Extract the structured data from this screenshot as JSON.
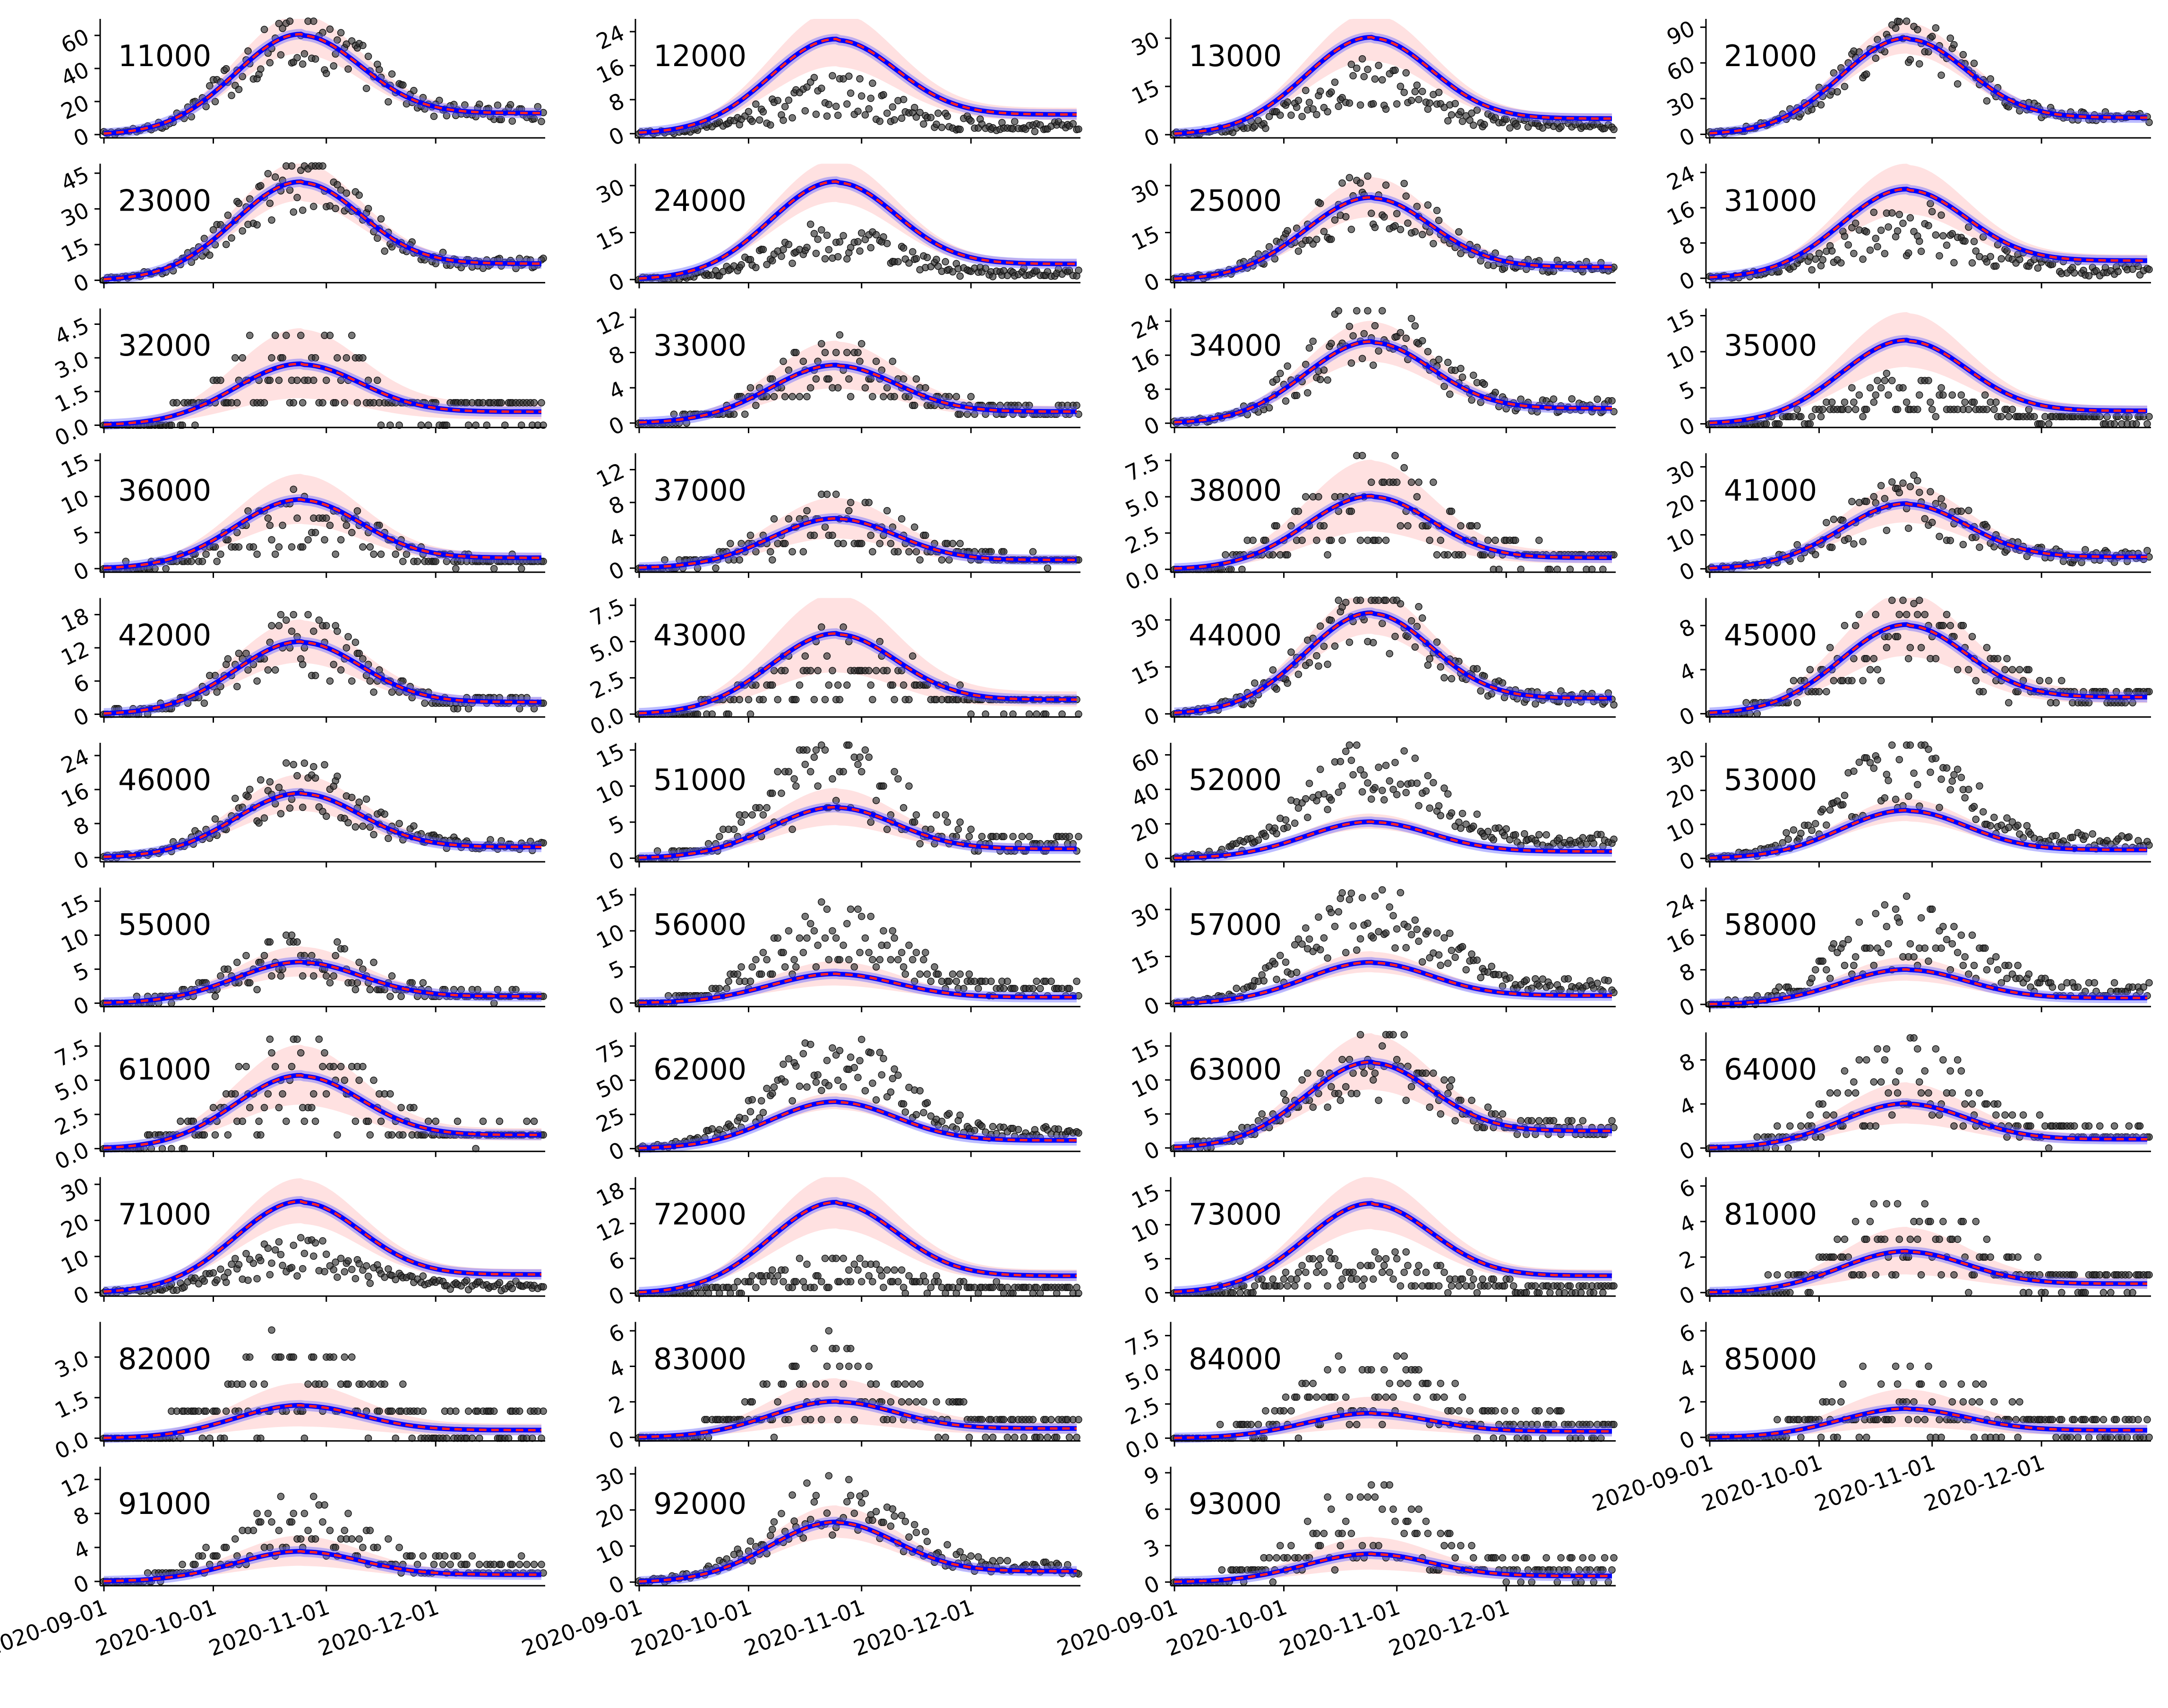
{
  "figure": {
    "x_ticks": [
      "2020-09-01",
      "2020-10-01",
      "2020-11-01",
      "2020-12-01"
    ],
    "colors": {
      "observed_points": "#333333",
      "fit_line": "#0000ff",
      "fit_line_halo": "#6a6aff",
      "median_dashed": "#ff2222",
      "uncertainty_band": "#ff9a9a"
    }
  },
  "chart_data": [
    {
      "type": "scatter",
      "panel_label": "11000",
      "y_ticks": [
        "0",
        "20",
        "40",
        "60"
      ],
      "ylim": [
        -2,
        70
      ],
      "peak": 60,
      "tail": 13,
      "band": 0.12,
      "obs_scale": 1.0,
      "obs_noise": 0.35,
      "x_ticks_visible": false
    },
    {
      "type": "scatter",
      "panel_label": "12000",
      "y_ticks": [
        "0",
        "8",
        "16",
        "24"
      ],
      "ylim": [
        -1,
        27
      ],
      "peak": 22,
      "tail": 4.5,
      "band": 0.18,
      "obs_scale": 0.4,
      "obs_noise": 0.6,
      "x_ticks_visible": false
    },
    {
      "type": "scatter",
      "panel_label": "13000",
      "y_ticks": [
        "0",
        "15",
        "30"
      ],
      "ylim": [
        -1,
        36
      ],
      "peak": 30,
      "tail": 5,
      "band": 0.15,
      "obs_scale": 0.55,
      "obs_noise": 0.5,
      "x_ticks_visible": false
    },
    {
      "type": "scatter",
      "panel_label": "21000",
      "y_ticks": [
        "0",
        "30",
        "60",
        "90"
      ],
      "ylim": [
        -3,
        97
      ],
      "peak": 80,
      "tail": 14,
      "band": 0.1,
      "obs_scale": 1.0,
      "obs_noise": 0.3,
      "x_ticks_visible": false
    },
    {
      "type": "scatter",
      "panel_label": "23000",
      "y_ticks": [
        "0",
        "15",
        "30",
        "45"
      ],
      "ylim": [
        -1,
        49
      ],
      "peak": 41,
      "tail": 7,
      "band": 0.12,
      "obs_scale": 1.0,
      "obs_noise": 0.35,
      "x_ticks_visible": false
    },
    {
      "type": "scatter",
      "panel_label": "24000",
      "y_ticks": [
        "0",
        "15",
        "30"
      ],
      "ylim": [
        -1,
        37
      ],
      "peak": 31,
      "tail": 5,
      "band": 0.13,
      "obs_scale": 0.4,
      "obs_noise": 0.5,
      "x_ticks_visible": false
    },
    {
      "type": "scatter",
      "panel_label": "25000",
      "y_ticks": [
        "0",
        "15",
        "30"
      ],
      "ylim": [
        -1,
        37
      ],
      "peak": 26,
      "tail": 4,
      "band": 0.15,
      "obs_scale": 1.0,
      "obs_noise": 0.4,
      "x_ticks_visible": false
    },
    {
      "type": "scatter",
      "panel_label": "31000",
      "y_ticks": [
        "0",
        "8",
        "16",
        "24"
      ],
      "ylim": [
        -1,
        26
      ],
      "peak": 20,
      "tail": 4,
      "band": 0.17,
      "obs_scale": 0.55,
      "obs_noise": 0.6,
      "x_ticks_visible": false
    },
    {
      "type": "scatter",
      "panel_label": "32000",
      "y_ticks": [
        "0.0",
        "1.5",
        "3.0",
        "4.5"
      ],
      "ylim": [
        -0.1,
        5.2
      ],
      "peak": 2.7,
      "tail": 0.6,
      "band": 0.35,
      "obs_scale": 1.0,
      "obs_noise": 0.8,
      "x_ticks_visible": false,
      "discrete": true
    },
    {
      "type": "scatter",
      "panel_label": "33000",
      "y_ticks": [
        "0",
        "4",
        "8",
        "12"
      ],
      "ylim": [
        -0.5,
        13
      ],
      "peak": 6.5,
      "tail": 1.3,
      "band": 0.25,
      "obs_scale": 1.0,
      "obs_noise": 0.55,
      "x_ticks_visible": false,
      "discrete": true
    },
    {
      "type": "scatter",
      "panel_label": "34000",
      "y_ticks": [
        "0",
        "8",
        "16",
        "24"
      ],
      "ylim": [
        -1,
        27
      ],
      "peak": 19,
      "tail": 3.5,
      "band": 0.15,
      "obs_scale": 1.1,
      "obs_noise": 0.45,
      "x_ticks_visible": false
    },
    {
      "type": "scatter",
      "panel_label": "35000",
      "y_ticks": [
        "0",
        "5",
        "10",
        "15"
      ],
      "ylim": [
        -0.5,
        16
      ],
      "peak": 11.5,
      "tail": 1.8,
      "band": 0.2,
      "obs_scale": 0.35,
      "obs_noise": 0.7,
      "x_ticks_visible": false,
      "discrete": true
    },
    {
      "type": "scatter",
      "panel_label": "36000",
      "y_ticks": [
        "0",
        "5",
        "10",
        "15"
      ],
      "ylim": [
        -0.5,
        16
      ],
      "peak": 9.5,
      "tail": 1.5,
      "band": 0.22,
      "obs_scale": 0.7,
      "obs_noise": 0.65,
      "x_ticks_visible": false,
      "discrete": true
    },
    {
      "type": "scatter",
      "panel_label": "37000",
      "y_ticks": [
        "0",
        "4",
        "8",
        "12"
      ],
      "ylim": [
        -0.5,
        14
      ],
      "peak": 6,
      "tail": 1.0,
      "band": 0.25,
      "obs_scale": 1.0,
      "obs_noise": 0.65,
      "x_ticks_visible": false,
      "discrete": true
    },
    {
      "type": "scatter",
      "panel_label": "38000",
      "y_ticks": [
        "0.0",
        "2.5",
        "5.0",
        "7.5"
      ],
      "ylim": [
        -0.2,
        8
      ],
      "peak": 5,
      "tail": 0.8,
      "band": 0.3,
      "obs_scale": 1.0,
      "obs_noise": 0.75,
      "x_ticks_visible": false,
      "discrete": true
    },
    {
      "type": "scatter",
      "panel_label": "41000",
      "y_ticks": [
        "0",
        "10",
        "20",
        "30"
      ],
      "ylim": [
        -1,
        34
      ],
      "peak": 19,
      "tail": 3.5,
      "band": 0.18,
      "obs_scale": 1.0,
      "obs_noise": 0.5,
      "x_ticks_visible": false
    },
    {
      "type": "scatter",
      "panel_label": "42000",
      "y_ticks": [
        "0",
        "6",
        "12",
        "18"
      ],
      "ylim": [
        -0.5,
        21
      ],
      "peak": 13,
      "tail": 2.2,
      "band": 0.18,
      "obs_scale": 1.0,
      "obs_noise": 0.45,
      "x_ticks_visible": false,
      "discrete": true
    },
    {
      "type": "scatter",
      "panel_label": "43000",
      "y_ticks": [
        "0.0",
        "2.5",
        "5.0",
        "7.5"
      ],
      "ylim": [
        -0.2,
        8
      ],
      "peak": 5.5,
      "tail": 1.0,
      "band": 0.3,
      "obs_scale": 0.7,
      "obs_noise": 0.75,
      "x_ticks_visible": false,
      "discrete": true
    },
    {
      "type": "scatter",
      "panel_label": "44000",
      "y_ticks": [
        "0",
        "15",
        "30"
      ],
      "ylim": [
        -1,
        37
      ],
      "peak": 32,
      "tail": 5,
      "band": 0.13,
      "obs_scale": 1.0,
      "obs_noise": 0.4,
      "x_ticks_visible": false
    },
    {
      "type": "scatter",
      "panel_label": "45000",
      "y_ticks": [
        "0",
        "4",
        "8"
      ],
      "ylim": [
        -0.3,
        10.5
      ],
      "peak": 8,
      "tail": 1.5,
      "band": 0.22,
      "obs_scale": 1.0,
      "obs_noise": 0.55,
      "x_ticks_visible": false,
      "discrete": true
    },
    {
      "type": "scatter",
      "panel_label": "46000",
      "y_ticks": [
        "0",
        "8",
        "16",
        "24"
      ],
      "ylim": [
        -1,
        27
      ],
      "peak": 15,
      "tail": 2.5,
      "band": 0.17,
      "obs_scale": 1.1,
      "obs_noise": 0.4,
      "x_ticks_visible": false
    },
    {
      "type": "scatter",
      "panel_label": "51000",
      "y_ticks": [
        "0",
        "5",
        "10",
        "15"
      ],
      "ylim": [
        -0.5,
        16
      ],
      "peak": 7,
      "tail": 1.3,
      "band": 0.22,
      "obs_scale": 1.6,
      "obs_noise": 0.55,
      "x_ticks_visible": false,
      "discrete": true
    },
    {
      "type": "scatter",
      "panel_label": "52000",
      "y_ticks": [
        "0",
        "20",
        "40",
        "60"
      ],
      "ylim": [
        -2,
        67
      ],
      "peak": 21,
      "tail": 4,
      "band": 0.12,
      "obs_scale": 2.5,
      "obs_noise": 0.35,
      "x_ticks_visible": false
    },
    {
      "type": "scatter",
      "panel_label": "53000",
      "y_ticks": [
        "0",
        "10",
        "20",
        "30"
      ],
      "ylim": [
        -1,
        34
      ],
      "peak": 14,
      "tail": 2.5,
      "band": 0.14,
      "obs_scale": 1.9,
      "obs_noise": 0.45,
      "x_ticks_visible": false
    },
    {
      "type": "scatter",
      "panel_label": "55000",
      "y_ticks": [
        "0",
        "5",
        "10",
        "15"
      ],
      "ylim": [
        -0.5,
        17
      ],
      "peak": 6,
      "tail": 1.0,
      "band": 0.22,
      "obs_scale": 1.1,
      "obs_noise": 0.6,
      "x_ticks_visible": false,
      "discrete": true
    },
    {
      "type": "scatter",
      "panel_label": "56000",
      "y_ticks": [
        "0",
        "5",
        "10",
        "15"
      ],
      "ylim": [
        -0.5,
        16
      ],
      "peak": 4,
      "tail": 0.8,
      "band": 0.25,
      "obs_scale": 2.4,
      "obs_noise": 0.5,
      "x_ticks_visible": false,
      "discrete": true
    },
    {
      "type": "scatter",
      "panel_label": "57000",
      "y_ticks": [
        "0",
        "15",
        "30"
      ],
      "ylim": [
        -1,
        37
      ],
      "peak": 13,
      "tail": 2.5,
      "band": 0.15,
      "obs_scale": 2.2,
      "obs_noise": 0.4,
      "x_ticks_visible": false
    },
    {
      "type": "scatter",
      "panel_label": "58000",
      "y_ticks": [
        "0",
        "8",
        "16",
        "24"
      ],
      "ylim": [
        -0.5,
        27
      ],
      "peak": 8,
      "tail": 1.5,
      "band": 0.2,
      "obs_scale": 2.1,
      "obs_noise": 0.5,
      "x_ticks_visible": false,
      "discrete": true
    },
    {
      "type": "scatter",
      "panel_label": "61000",
      "y_ticks": [
        "0.0",
        "2.5",
        "5.0",
        "7.5"
      ],
      "ylim": [
        -0.2,
        8.5
      ],
      "peak": 5.3,
      "tail": 1.0,
      "band": 0.25,
      "obs_scale": 1.0,
      "obs_noise": 0.7,
      "x_ticks_visible": false,
      "discrete": true
    },
    {
      "type": "scatter",
      "panel_label": "62000",
      "y_ticks": [
        "0",
        "25",
        "50",
        "75"
      ],
      "ylim": [
        -2,
        85
      ],
      "peak": 34,
      "tail": 6,
      "band": 0.1,
      "obs_scale": 1.9,
      "obs_noise": 0.35,
      "x_ticks_visible": false
    },
    {
      "type": "scatter",
      "panel_label": "63000",
      "y_ticks": [
        "0",
        "5",
        "10",
        "15"
      ],
      "ylim": [
        -0.5,
        17
      ],
      "peak": 12.5,
      "tail": 2.5,
      "band": 0.2,
      "obs_scale": 1.1,
      "obs_noise": 0.45,
      "x_ticks_visible": false,
      "discrete": true
    },
    {
      "type": "scatter",
      "panel_label": "64000",
      "y_ticks": [
        "0",
        "4",
        "8"
      ],
      "ylim": [
        -0.3,
        10.5
      ],
      "peak": 4,
      "tail": 0.8,
      "band": 0.28,
      "obs_scale": 1.6,
      "obs_noise": 0.65,
      "x_ticks_visible": false,
      "discrete": true
    },
    {
      "type": "scatter",
      "panel_label": "71000",
      "y_ticks": [
        "0",
        "10",
        "20",
        "30"
      ],
      "ylim": [
        -1,
        32
      ],
      "peak": 25,
      "tail": 5,
      "band": 0.15,
      "obs_scale": 0.4,
      "obs_noise": 0.55,
      "x_ticks_visible": false
    },
    {
      "type": "scatter",
      "panel_label": "72000",
      "y_ticks": [
        "0",
        "6",
        "12",
        "18"
      ],
      "ylim": [
        -0.5,
        20
      ],
      "peak": 15.5,
      "tail": 3,
      "band": 0.18,
      "obs_scale": 0.25,
      "obs_noise": 0.8,
      "x_ticks_visible": false,
      "discrete": true
    },
    {
      "type": "scatter",
      "panel_label": "73000",
      "y_ticks": [
        "0",
        "5",
        "10",
        "15"
      ],
      "ylim": [
        -0.5,
        17
      ],
      "peak": 13,
      "tail": 2.5,
      "band": 0.18,
      "obs_scale": 0.3,
      "obs_noise": 0.8,
      "x_ticks_visible": false,
      "discrete": true
    },
    {
      "type": "scatter",
      "panel_label": "81000",
      "y_ticks": [
        "0",
        "2",
        "4",
        "6"
      ],
      "ylim": [
        -0.2,
        6.5
      ],
      "peak": 2.3,
      "tail": 0.5,
      "band": 0.35,
      "obs_scale": 1.4,
      "obs_noise": 0.8,
      "x_ticks_visible": false,
      "discrete": true
    },
    {
      "type": "scatter",
      "panel_label": "82000",
      "y_ticks": [
        "0.0",
        "1.5",
        "3.0"
      ],
      "ylim": [
        -0.1,
        4.3
      ],
      "peak": 1.2,
      "tail": 0.3,
      "band": 0.4,
      "obs_scale": 1.7,
      "obs_noise": 0.9,
      "x_ticks_visible": false,
      "discrete": true
    },
    {
      "type": "scatter",
      "panel_label": "83000",
      "y_ticks": [
        "0",
        "2",
        "4",
        "6"
      ],
      "ylim": [
        -0.2,
        6.5
      ],
      "peak": 2,
      "tail": 0.5,
      "band": 0.38,
      "obs_scale": 1.5,
      "obs_noise": 0.85,
      "x_ticks_visible": false,
      "discrete": true
    },
    {
      "type": "scatter",
      "panel_label": "84000",
      "y_ticks": [
        "0.0",
        "2.5",
        "5.0",
        "7.5"
      ],
      "ylim": [
        -0.2,
        8.5
      ],
      "peak": 1.8,
      "tail": 0.5,
      "band": 0.38,
      "obs_scale": 2.0,
      "obs_noise": 0.85,
      "x_ticks_visible": false,
      "discrete": true
    },
    {
      "type": "scatter",
      "panel_label": "85000",
      "y_ticks": [
        "0",
        "2",
        "4",
        "6"
      ],
      "ylim": [
        -0.2,
        6.5
      ],
      "peak": 1.6,
      "tail": 0.4,
      "band": 0.4,
      "obs_scale": 1.4,
      "obs_noise": 0.9,
      "x_ticks_visible": true,
      "discrete": true
    },
    {
      "type": "scatter",
      "panel_label": "91000",
      "y_ticks": [
        "0",
        "4",
        "8",
        "12"
      ],
      "ylim": [
        -0.5,
        13.5
      ],
      "peak": 3.5,
      "tail": 0.8,
      "band": 0.3,
      "obs_scale": 1.9,
      "obs_noise": 0.6,
      "x_ticks_visible": true,
      "discrete": true
    },
    {
      "type": "scatter",
      "panel_label": "92000",
      "y_ticks": [
        "0",
        "10",
        "20",
        "30"
      ],
      "ylim": [
        -1,
        32
      ],
      "peak": 16.5,
      "tail": 3,
      "band": 0.16,
      "obs_scale": 1.3,
      "obs_noise": 0.4,
      "x_ticks_visible": true
    },
    {
      "type": "scatter",
      "panel_label": "93000",
      "y_ticks": [
        "0",
        "3",
        "6",
        "9"
      ],
      "ylim": [
        -0.3,
        9.5
      ],
      "peak": 2.3,
      "tail": 0.5,
      "band": 0.35,
      "obs_scale": 2.0,
      "obs_noise": 0.75,
      "x_ticks_visible": true,
      "discrete": true
    }
  ]
}
